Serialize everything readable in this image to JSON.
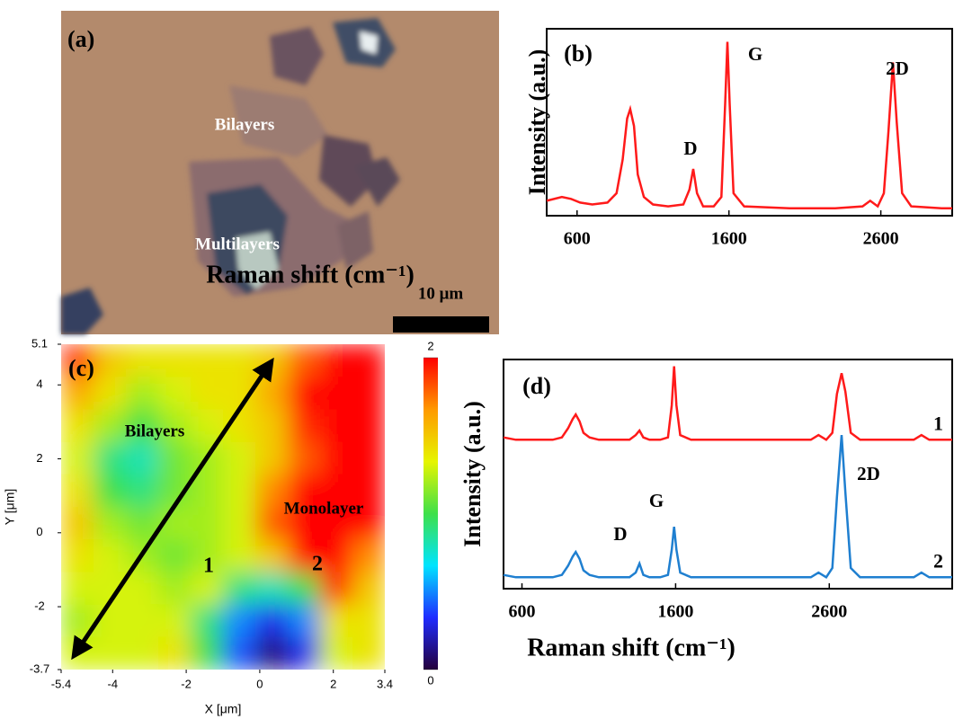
{
  "chart_data": [
    {
      "type": "image",
      "panel_label": "(a)",
      "annotations": [
        "Bilayers",
        "Multilayers"
      ],
      "scale_bar": "10 μm"
    },
    {
      "type": "line",
      "panel_label": "(b)",
      "x_label": "Raman shift (cm⁻¹)",
      "y_label": "Intensity (a.u.)",
      "xlim": [
        400,
        3070
      ],
      "xticks": [
        600,
        1600,
        2600
      ],
      "ylim": [
        0,
        100
      ],
      "x": [
        400,
        500,
        560,
        620,
        700,
        800,
        860,
        900,
        930,
        950,
        975,
        1000,
        1040,
        1100,
        1200,
        1300,
        1340,
        1365,
        1390,
        1430,
        1500,
        1550,
        1575,
        1590,
        1605,
        1630,
        1700,
        2000,
        2300,
        2480,
        2530,
        2580,
        2620,
        2650,
        2680,
        2705,
        2740,
        2800,
        3000,
        3070
      ],
      "series": [
        {
          "color": "#ff1a1a",
          "values": [
            8,
            10,
            9,
            7,
            6,
            7,
            12,
            30,
            52,
            57,
            48,
            22,
            10,
            6,
            5,
            6,
            14,
            25,
            12,
            5,
            5,
            10,
            60,
            93,
            60,
            12,
            5,
            4,
            4,
            5,
            8,
            5,
            12,
            45,
            82,
            50,
            12,
            5,
            4,
            4
          ]
        }
      ],
      "annotations": [
        "D",
        "G",
        "2D"
      ]
    },
    {
      "type": "heatmap",
      "panel_label": "(c)",
      "x_label": "X [μm]",
      "y_label": "Y [μm]",
      "xlim": [
        -5.4,
        3.4
      ],
      "xticks": [
        -5.4,
        -4,
        -2,
        0,
        2,
        3.4
      ],
      "ylim": [
        -3.7,
        5.1
      ],
      "yticks": [
        -3.7,
        -2,
        0,
        2,
        4,
        5.1
      ],
      "z": [
        [
          1.9,
          1.5,
          1.4,
          1.4,
          1.4,
          1.4,
          1.5,
          1.8,
          2,
          2
        ],
        [
          1.6,
          1.4,
          1.2,
          1.3,
          1.4,
          1.4,
          1.6,
          2,
          2,
          2
        ],
        [
          1.4,
          1.2,
          1.0,
          1.2,
          1.3,
          1.4,
          1.5,
          1.9,
          2,
          2
        ],
        [
          1.3,
          0.9,
          0.8,
          1.1,
          1.2,
          1.3,
          1.5,
          1.8,
          2,
          2
        ],
        [
          1.4,
          1.0,
          0.9,
          1.1,
          1.2,
          1.3,
          1.7,
          2,
          2,
          2
        ],
        [
          1.5,
          1.2,
          1.1,
          1.2,
          1.2,
          1.3,
          1.8,
          2,
          2,
          2
        ],
        [
          1.4,
          1.3,
          1.2,
          1.1,
          1.2,
          1.3,
          1.5,
          2,
          2,
          1.7
        ],
        [
          1.3,
          1.3,
          1.3,
          1.2,
          1.3,
          0.9,
          0.8,
          1.0,
          1.9,
          1.5
        ],
        [
          1.2,
          1.3,
          1.3,
          1.3,
          0.9,
          0.5,
          0.3,
          0.5,
          1.4,
          1.4
        ],
        [
          1.3,
          1.3,
          1.3,
          1.4,
          1.0,
          0.4,
          0.1,
          0.3,
          1.3,
          1.4
        ]
      ],
      "zlim": [
        0,
        2
      ],
      "zticks": [
        0,
        2
      ],
      "colorscale": [
        "#24003c",
        "#1f2cff",
        "#00e4ff",
        "#3ee04a",
        "#e6f500",
        "#ff9a00",
        "#ff0000"
      ],
      "annotations": [
        "Bilayers",
        "Monolayer",
        "1",
        "2"
      ]
    },
    {
      "type": "line",
      "panel_label": "(d)",
      "x_label": "Raman shift (cm⁻¹)",
      "y_label": "Intensity (a.u.)",
      "xlim": [
        480,
        3400
      ],
      "xticks": [
        600,
        1600,
        2600
      ],
      "ylim": [
        0,
        100
      ],
      "x": [
        480,
        560,
        620,
        700,
        800,
        860,
        900,
        930,
        950,
        975,
        1000,
        1040,
        1100,
        1200,
        1300,
        1340,
        1365,
        1390,
        1430,
        1500,
        1550,
        1575,
        1590,
        1605,
        1630,
        1700,
        2000,
        2300,
        2480,
        2530,
        2580,
        2620,
        2650,
        2680,
        2705,
        2740,
        2800,
        3000,
        3150,
        3200,
        3250,
        3400
      ],
      "series": [
        {
          "name": "1",
          "color": "#ff1a1a",
          "values": [
            66,
            65,
            65,
            65,
            65,
            66,
            70,
            74,
            76,
            73,
            68,
            66,
            65,
            65,
            65,
            67,
            69,
            66,
            65,
            65,
            66,
            80,
            97,
            80,
            67,
            65,
            65,
            65,
            65,
            67,
            65,
            68,
            85,
            94,
            86,
            68,
            65,
            65,
            65,
            67,
            65,
            65
          ]
        },
        {
          "name": "2",
          "color": "#1f7fd0",
          "values": [
            6,
            5,
            5,
            5,
            5,
            6,
            10,
            14,
            16,
            13,
            8,
            6,
            5,
            5,
            5,
            7,
            11,
            6,
            5,
            5,
            6,
            17,
            27,
            17,
            7,
            5,
            5,
            5,
            5,
            7,
            5,
            9,
            40,
            67,
            42,
            9,
            5,
            5,
            5,
            7,
            5,
            5
          ]
        }
      ],
      "annotations": [
        "D",
        "G",
        "2D"
      ]
    }
  ]
}
